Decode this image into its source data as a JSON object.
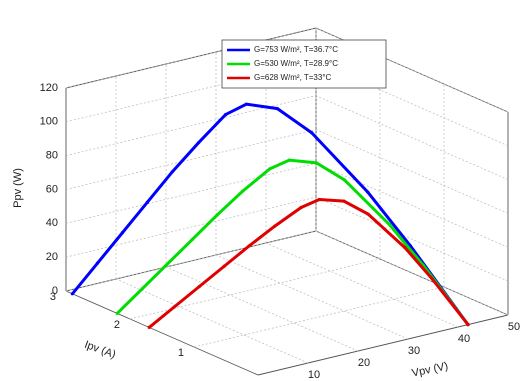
{
  "chart_data": {
    "type": "line3d",
    "xlabel": "Vpv (V)",
    "ylabel": "Ipv (A)",
    "zlabel": "Ppv (W)",
    "xlim": [
      0,
      50
    ],
    "xticks": [
      10,
      20,
      30,
      40,
      50
    ],
    "ylim": [
      0,
      3
    ],
    "yticks": [
      1,
      2,
      3
    ],
    "zlim": [
      0,
      120
    ],
    "zticks": [
      0,
      20,
      40,
      60,
      80,
      100,
      120
    ],
    "grid": true,
    "legend": "top",
    "series": [
      {
        "name": "G=753 W/m², T=36.7°C",
        "color": "#0000ff",
        "x": [
          0,
          5,
          10,
          15,
          20,
          25,
          30,
          33,
          36,
          38,
          40,
          41,
          42
        ],
        "y": [
          2.9,
          2.9,
          2.9,
          2.9,
          2.9,
          2.88,
          2.85,
          2.76,
          2.51,
          2.13,
          1.41,
          0.82,
          0
        ],
        "z": [
          0,
          14.5,
          29,
          43.5,
          58,
          72,
          85.5,
          91,
          90.4,
          81,
          56.4,
          33.6,
          0
        ]
      },
      {
        "name": "G=530 W/m², T=28.9°C",
        "color": "#00dd00",
        "x": [
          0,
          5,
          10,
          15,
          20,
          25,
          30,
          33,
          36,
          38,
          40,
          41,
          42
        ],
        "y": [
          2.2,
          2.2,
          2.2,
          2.2,
          2.2,
          2.19,
          2.16,
          2.09,
          1.9,
          1.62,
          1.07,
          0.62,
          0
        ],
        "z": [
          0,
          11,
          22,
          33,
          44,
          54.8,
          64.8,
          69,
          68.4,
          61.6,
          42.8,
          25.4,
          0
        ]
      },
      {
        "name": "G=628 W/m², T=33°C",
        "color": "#e00000",
        "x": [
          0,
          5,
          10,
          15,
          20,
          25,
          30,
          33,
          36,
          38,
          40,
          41,
          42
        ],
        "y": [
          1.7,
          1.7,
          1.7,
          1.7,
          1.7,
          1.69,
          1.67,
          1.62,
          1.47,
          1.25,
          0.83,
          0.48,
          0
        ],
        "z": [
          0,
          8.5,
          17,
          25.5,
          34,
          42.3,
          50.1,
          53.5,
          52.9,
          47.5,
          33.2,
          19.7,
          0
        ]
      }
    ]
  }
}
